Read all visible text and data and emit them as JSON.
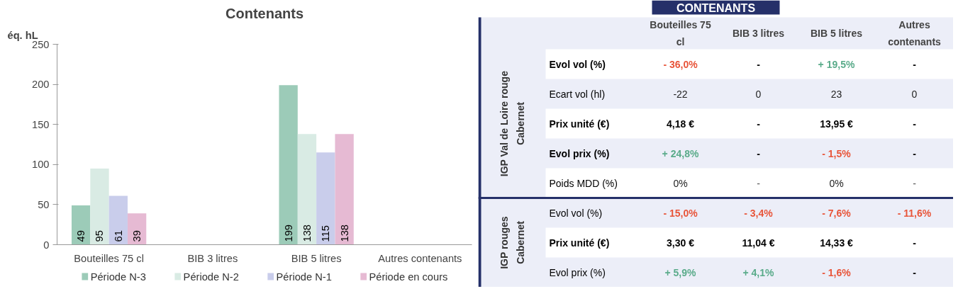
{
  "chart_data": [
    {
      "type": "bar",
      "title": "Contenants",
      "ylabel": "éq. hL",
      "categories": [
        "Bouteilles 75 cl",
        "BIB 3 litres",
        "BIB 5 litres",
        "Autres contenants"
      ],
      "series": [
        {
          "name": "Période N-3",
          "color": "#9ccbb8",
          "values": [
            49,
            null,
            199,
            null
          ]
        },
        {
          "name": "Période N-2",
          "color": "#d9ebe4",
          "values": [
            95,
            null,
            138,
            null
          ]
        },
        {
          "name": "Période N-1",
          "color": "#c9cdeb",
          "values": [
            61,
            null,
            115,
            null
          ]
        },
        {
          "name": "Période en cours",
          "color": "#e6bad3",
          "values": [
            39,
            null,
            138,
            null
          ]
        }
      ],
      "ylim": [
        0,
        250
      ],
      "yticks": [
        0,
        50,
        100,
        150,
        200,
        250
      ],
      "grid": false,
      "legend": "bottom",
      "data_labels": true
    },
    {
      "type": "other",
      "title": "CONTENANTS",
      "categories": [
        "Bouteilles 75 cl",
        "BIB 3 litres",
        "BIB 5 litres",
        "Autres contenants"
      ],
      "y_categories": [
        "Evol vol (%)",
        "Ecart vol (hl)",
        "Prix unité (€)",
        "Evol prix (%)",
        "Poids MDD (%)",
        "Evol vol (%)",
        "Prix unité (€)",
        "Evol prix (%)"
      ],
      "cell_labels": [
        [
          "- 36,0%",
          "-",
          "+ 19,5%",
          "-"
        ],
        [
          "-22",
          "0",
          "23",
          "0"
        ],
        [
          "4,18 €",
          "-",
          "13,95 €",
          "-"
        ],
        [
          "+ 24,8%",
          "-",
          "- 1,5%",
          "-"
        ],
        [
          "0%",
          "-",
          "0%",
          "-"
        ],
        [
          "- 15,0%",
          "- 3,4%",
          "- 7,6%",
          "- 11,6%"
        ],
        [
          "3,30 €",
          "11,04 €",
          "14,33 €",
          "-"
        ],
        [
          "+ 5,9%",
          "+ 4,1%",
          "- 1,6%",
          "-"
        ]
      ],
      "colors": [
        [
          "#e8553a",
          "#000000",
          "#5aab8a",
          "#000000"
        ],
        [
          "#222222",
          "#222222",
          "#222222",
          "#222222"
        ],
        [
          "#000000",
          "#000000",
          "#000000",
          "#000000"
        ],
        [
          "#5aab8a",
          "#000000",
          "#e8553a",
          "#000000"
        ],
        [
          "#222222",
          "#555555",
          "#222222",
          "#555555"
        ],
        [
          "#e8553a",
          "#e8553a",
          "#e8553a",
          "#e8553a"
        ],
        [
          "#000000",
          "#000000",
          "#000000",
          "#000000"
        ],
        [
          "#5aab8a",
          "#5aab8a",
          "#e8553a",
          "#000000"
        ]
      ],
      "annotations": [
        "IGP Val de Loire rouge Cabernet",
        "IGP rouges Cabernet"
      ]
    }
  ]
}
